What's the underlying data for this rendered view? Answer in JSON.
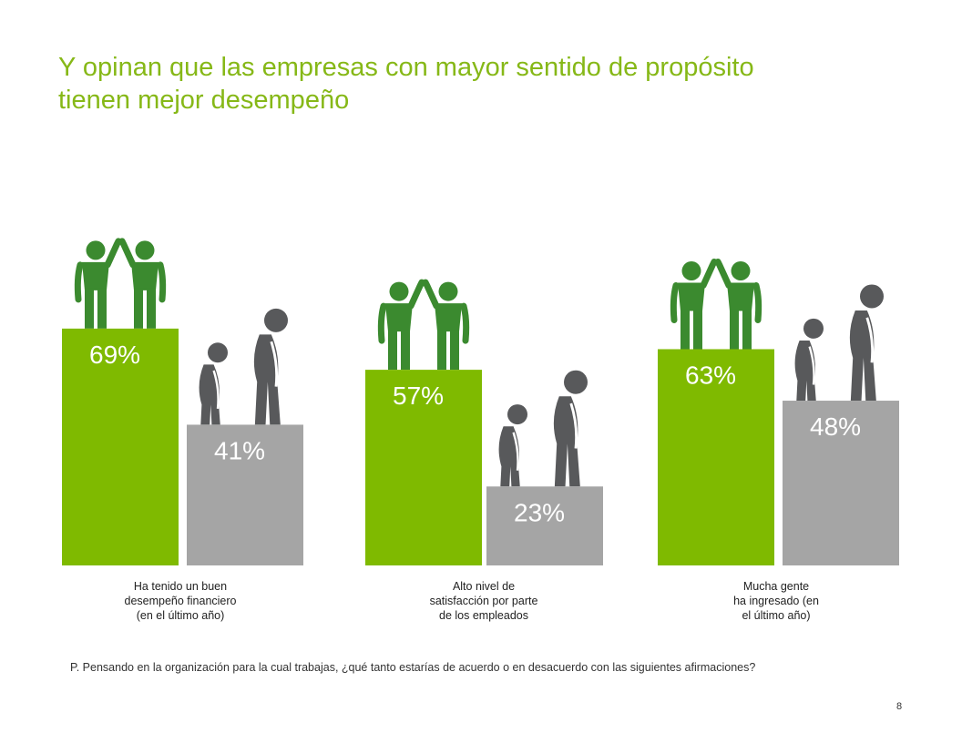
{
  "title_lines": [
    "Y opinan que las empresas con mayor sentido de propósito",
    "tienen mejor desempeño"
  ],
  "footnote": "P. Pensando en la organización para la cual trabajas, ¿qué tanto estarías de acuerdo o en desacuerdo con las siguientes afirmaciones?",
  "page_number": "8",
  "colors": {
    "title": "#86b817",
    "high_bar": "#7fba00",
    "low_bar": "#a5a5a5",
    "happy_icon": "#3b8a2f",
    "sad_icon": "#58595b",
    "bar_label": "#ffffff"
  },
  "chart_data": {
    "type": "bar",
    "categories": [
      [
        "Ha tenido un buen",
        "desempeño financiero",
        "(en el último año)"
      ],
      [
        "Alto nivel de",
        "satisfacción por parte",
        "de los empleados"
      ],
      [
        "Mucha gente",
        "ha ingresado (en",
        "el último año)"
      ]
    ],
    "series": [
      {
        "values": [
          69,
          57,
          63
        ],
        "labels": [
          "69%",
          "57%",
          "63%"
        ],
        "icon": "high-five-people-icon"
      },
      {
        "values": [
          41,
          23,
          48
        ],
        "labels": [
          "41%",
          "23%",
          "48%"
        ],
        "icon": "sad-person-icon"
      }
    ],
    "ylim": [
      0,
      100
    ]
  }
}
